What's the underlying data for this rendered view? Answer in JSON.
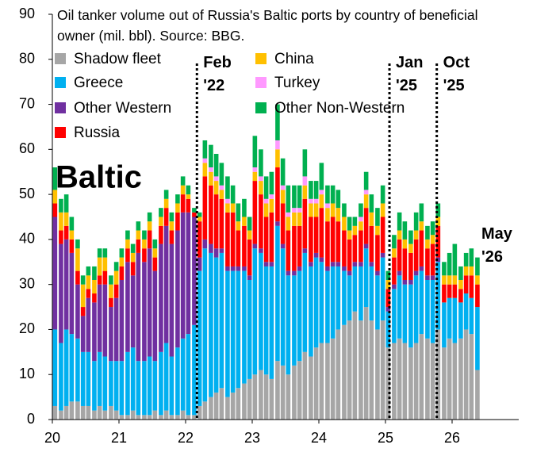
{
  "chart_data": {
    "type": "stacked_bar",
    "title": "Oil tanker volume out of Russia's Baltic ports by country of beneficial owner (mil. bbl). Source: BBG.",
    "annotations": [
      {
        "text": "Baltic"
      },
      {
        "text": "Feb '22",
        "x": 2022.17
      },
      {
        "text": "Jan '25",
        "x": 2025.06
      },
      {
        "text": "Oct '25",
        "x": 2025.77
      },
      {
        "text": "May '26"
      }
    ],
    "x": [
      2020.04,
      2020.13,
      2020.21,
      2020.29,
      2020.38,
      2020.46,
      2020.54,
      2020.63,
      2020.71,
      2020.79,
      2020.88,
      2020.96,
      2021.04,
      2021.13,
      2021.21,
      2021.29,
      2021.38,
      2021.46,
      2021.54,
      2021.63,
      2021.71,
      2021.79,
      2021.88,
      2021.96,
      2022.04,
      2022.13,
      2022.21,
      2022.29,
      2022.38,
      2022.46,
      2022.54,
      2022.63,
      2022.71,
      2022.79,
      2022.88,
      2022.96,
      2023.04,
      2023.13,
      2023.21,
      2023.29,
      2023.38,
      2023.46,
      2023.54,
      2023.63,
      2023.71,
      2023.79,
      2023.88,
      2023.96,
      2024.04,
      2024.13,
      2024.21,
      2024.29,
      2024.38,
      2024.46,
      2024.54,
      2024.63,
      2024.71,
      2024.79,
      2024.88,
      2024.96,
      2025.04,
      2025.13,
      2025.21,
      2025.29,
      2025.38,
      2025.46,
      2025.54,
      2025.63,
      2025.71,
      2025.79,
      2025.88,
      2025.96,
      2026.04,
      2026.13,
      2026.21,
      2026.29,
      2026.38
    ],
    "series": [
      {
        "name": "Shadow fleet",
        "color": "#a6a6a6",
        "values": [
          3,
          2,
          3,
          4,
          4,
          3,
          3,
          2,
          3,
          2,
          3,
          2,
          1,
          1,
          2,
          1,
          1,
          1,
          2,
          1,
          2,
          1,
          1,
          2,
          1,
          1,
          3,
          4,
          5,
          6,
          7,
          5,
          6,
          7,
          8,
          9,
          10,
          11,
          10,
          9,
          13,
          12,
          10,
          12,
          13,
          15,
          14,
          16,
          17,
          17,
          18,
          20,
          21,
          22,
          24,
          22,
          25,
          22,
          20,
          22,
          16,
          17,
          18,
          17,
          16,
          17,
          19,
          18,
          17,
          20,
          16,
          18,
          17,
          18,
          20,
          19,
          11
        ]
      },
      {
        "name": "Greece",
        "color": "#00b0f0",
        "values": [
          17,
          15,
          17,
          15,
          14,
          12,
          12,
          11,
          12,
          12,
          10,
          11,
          12,
          14,
          14,
          12,
          12,
          13,
          11,
          14,
          15,
          13,
          15,
          16,
          18,
          20,
          30,
          34,
          32,
          30,
          30,
          28,
          27,
          26,
          25,
          22,
          28,
          26,
          24,
          25,
          30,
          26,
          22,
          20,
          20,
          22,
          20,
          20,
          18,
          16,
          16,
          14,
          12,
          10,
          10,
          12,
          13,
          12,
          12,
          14,
          8,
          12,
          14,
          13,
          14,
          15,
          14,
          13,
          14,
          15,
          10,
          9,
          10,
          8,
          8,
          8,
          14
        ]
      },
      {
        "name": "Other Western",
        "color": "#7030a0",
        "values": [
          25,
          22,
          20,
          18,
          12,
          8,
          12,
          13,
          15,
          16,
          12,
          14,
          18,
          20,
          16,
          24,
          22,
          24,
          20,
          24,
          26,
          25,
          26,
          28,
          27,
          24,
          3,
          2,
          2,
          2,
          1,
          1,
          1,
          1,
          1,
          1,
          1,
          1,
          1,
          1,
          1,
          1,
          1,
          1,
          1,
          1,
          1,
          1,
          1,
          1,
          1,
          1,
          1,
          1,
          1,
          1,
          1,
          1,
          1,
          1,
          1,
          1,
          1,
          1,
          1,
          1,
          1,
          1,
          1,
          1,
          0,
          0,
          0,
          0,
          0,
          0,
          0
        ]
      },
      {
        "name": "Russia",
        "color": "#ff0000",
        "values": [
          3,
          3,
          3,
          3,
          3,
          2,
          2,
          2,
          2,
          3,
          2,
          3,
          3,
          3,
          3,
          3,
          3,
          4,
          3,
          4,
          4,
          3,
          4,
          4,
          3,
          1,
          8,
          14,
          13,
          12,
          11,
          12,
          12,
          8,
          9,
          8,
          14,
          12,
          10,
          11,
          12,
          9,
          9,
          10,
          9,
          11,
          10,
          8,
          11,
          10,
          10,
          9,
          8,
          7,
          6,
          7,
          8,
          8,
          8,
          8,
          4,
          6,
          7,
          7,
          6,
          7,
          8,
          6,
          7,
          7,
          4,
          3,
          3,
          3,
          4,
          5,
          5
        ]
      },
      {
        "name": "China",
        "color": "#ffc000",
        "values": [
          3,
          4,
          3,
          2,
          5,
          5,
          3,
          3,
          4,
          3,
          3,
          3,
          2,
          2,
          2,
          2,
          2,
          2,
          2,
          2,
          2,
          2,
          2,
          2,
          1,
          0,
          1,
          3,
          3,
          3,
          2,
          2,
          2,
          2,
          2,
          2,
          2,
          3,
          3,
          3,
          4,
          3,
          3,
          3,
          3,
          3,
          3,
          3,
          3,
          3,
          3,
          3,
          3,
          2,
          2,
          2,
          3,
          3,
          2,
          3,
          2,
          2,
          2,
          2,
          2,
          2,
          2,
          2,
          2,
          2,
          2,
          2,
          2,
          2,
          2,
          2,
          2
        ]
      },
      {
        "name": "Turkey",
        "color": "#ff99ff",
        "values": [
          0,
          0,
          0,
          0,
          0,
          0,
          0,
          0,
          0,
          0,
          0,
          0,
          0,
          0,
          0,
          0,
          0,
          0,
          0,
          0,
          0,
          0,
          0,
          0,
          0,
          0,
          0,
          1,
          1,
          1,
          1,
          1,
          0,
          0,
          0,
          0,
          1,
          1,
          1,
          1,
          2,
          1,
          1,
          1,
          1,
          2,
          1,
          1,
          1,
          1,
          0,
          0,
          0,
          0,
          0,
          1,
          1,
          0,
          0,
          0,
          0,
          0,
          0,
          0,
          0,
          0,
          0,
          0,
          0,
          0,
          0,
          0,
          0,
          0,
          0,
          0,
          0
        ]
      },
      {
        "name": "Other Non-Western",
        "color": "#00b050",
        "values": [
          5,
          3,
          4,
          3,
          2,
          2,
          2,
          3,
          2,
          2,
          2,
          2,
          2,
          2,
          2,
          2,
          2,
          2,
          2,
          2,
          2,
          2,
          2,
          2,
          2,
          1,
          1,
          4,
          5,
          5,
          5,
          5,
          4,
          4,
          4,
          3,
          7,
          6,
          5,
          5,
          8,
          6,
          6,
          5,
          5,
          6,
          4,
          4,
          6,
          4,
          4,
          4,
          3,
          3,
          2,
          3,
          4,
          4,
          4,
          4,
          2,
          3,
          4,
          4,
          3,
          4,
          4,
          3,
          3,
          3,
          3,
          5,
          7,
          3,
          3,
          4,
          4
        ]
      }
    ],
    "xlim": [
      2020,
      2027
    ],
    "xticks": [
      {
        "value": 2020,
        "label": "20"
      },
      {
        "value": 2021,
        "label": "21"
      },
      {
        "value": 2022,
        "label": "22"
      },
      {
        "value": 2023,
        "label": "23"
      },
      {
        "value": 2024,
        "label": "24"
      },
      {
        "value": 2025,
        "label": "25"
      },
      {
        "value": 2026,
        "label": "26"
      }
    ],
    "ylim": [
      0,
      90
    ],
    "yticks": [
      0,
      10,
      20,
      30,
      40,
      50,
      60,
      70,
      80,
      90
    ],
    "grid": false
  }
}
